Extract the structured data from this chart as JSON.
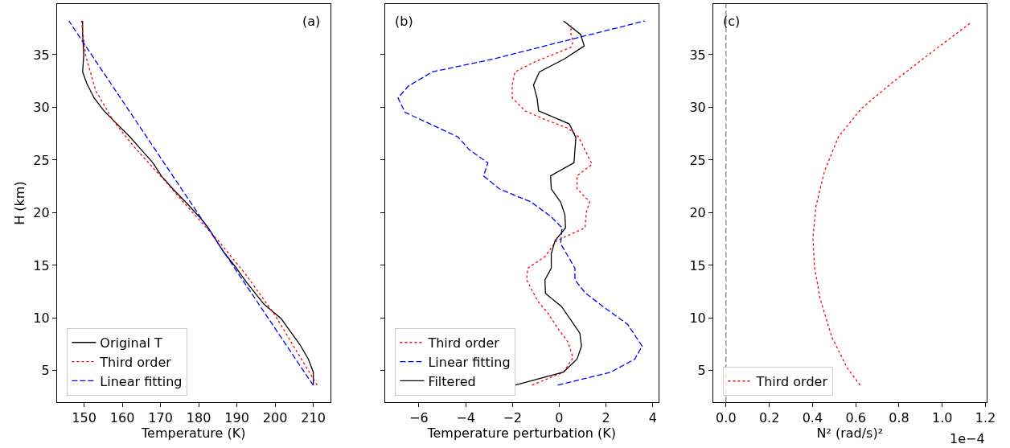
{
  "chart_data": [
    {
      "type": "line",
      "xlabel": "Temperature (K)",
      "ylabel": "H (km)",
      "annotations": [
        "(a)"
      ],
      "xlim": [
        142.9,
        214.4
      ],
      "xticks": [
        150,
        160,
        170,
        180,
        190,
        200,
        210
      ],
      "ylim": [
        2.0,
        39.8
      ],
      "yticks": [
        5,
        10,
        15,
        20,
        25,
        30,
        35
      ],
      "legend": "bottom left",
      "series": [
        {
          "name": "Original T",
          "color": "#000000",
          "line_style": "solid",
          "x": [
            210.0,
            210.0,
            208.7,
            206.5,
            204.6,
            201.6,
            197.1,
            192.3,
            189.6,
            186.6,
            182.5,
            180.7,
            176.9,
            173.2,
            170.2,
            168.0,
            165.0,
            162.0,
            158.6,
            155.2,
            152.6,
            150.7,
            149.6,
            149.9,
            149.6,
            149.6
          ],
          "values": [
            3.63,
            4.86,
            6.1,
            7.47,
            8.42,
            9.93,
            11.3,
            13.49,
            14.86,
            16.23,
            18.56,
            19.38,
            20.89,
            22.26,
            23.49,
            24.73,
            25.96,
            27.19,
            28.42,
            29.66,
            30.89,
            32.26,
            33.36,
            35.0,
            36.92,
            38.2
          ]
        },
        {
          "name": "Third order",
          "color": "#ff0000",
          "line_style": "dotted",
          "x": [
            211.0,
            204.6,
            200.1,
            192.6,
            185.2,
            177.7,
            170.2,
            162.7,
            157.5,
            153.0,
            150.4,
            149.3
          ],
          "values": [
            3.63,
            7.47,
            10.2,
            14.0,
            17.3,
            20.3,
            23.4,
            26.4,
            28.8,
            31.6,
            34.9,
            38.2
          ]
        },
        {
          "name": "Linear fitting",
          "color": "#0000ff",
          "line_style": "dashed",
          "x": [
            210.0,
            146.0
          ],
          "values": [
            3.6,
            38.2
          ]
        }
      ]
    },
    {
      "type": "line",
      "xlabel": "Temperature perturbation (K)",
      "annotations": [
        "(b)"
      ],
      "xlim": [
        -7.44,
        4.23
      ],
      "xticks": [
        {
          "value": -6,
          "label": "−6"
        },
        {
          "value": -4,
          "label": "−4"
        },
        {
          "value": -2,
          "label": "−2"
        },
        0,
        2,
        4
      ],
      "ylim": [
        2.0,
        39.8
      ],
      "yticks": [
        {
          "value": 5,
          "label": null
        },
        {
          "value": 10,
          "label": null
        },
        {
          "value": 15,
          "label": null
        },
        {
          "value": 20,
          "label": null
        },
        {
          "value": 25,
          "label": null
        },
        {
          "value": 30,
          "label": null
        },
        {
          "value": 35,
          "label": null
        }
      ],
      "tick_labels": "x",
      "legend": "bottom left",
      "series": [
        {
          "name": "Third order",
          "color": "#ff0000",
          "line_style": "dotted",
          "x": [
            -1.16,
            0.18,
            0.59,
            0.37,
            0.0,
            -0.49,
            -0.91,
            -1.4,
            -1.34,
            -0.61,
            -0.12,
            1.1,
            1.16,
            1.3,
            0.76,
            0.76,
            1.4,
            0.83,
            0.37,
            -0.61,
            -1.46,
            -2.01,
            -2.01,
            -1.89,
            -1.04,
            0.49,
            0.59,
            0.49,
            0.51
          ],
          "values": [
            3.63,
            4.86,
            6.23,
            7.74,
            8.84,
            10.48,
            11.58,
            13.63,
            14.73,
            15.82,
            17.33,
            18.56,
            20.07,
            21.03,
            22.26,
            23.49,
            24.59,
            27.19,
            28.01,
            28.84,
            29.66,
            30.89,
            32.12,
            33.36,
            34.32,
            35.68,
            36.23,
            37.05,
            37.79
          ]
        },
        {
          "name": "Linear fitting",
          "color": "#0000ff",
          "line_style": "dashed",
          "x": [
            -0.06,
            2.2,
            3.23,
            3.54,
            2.93,
            1.83,
            1.1,
            0.67,
            0.67,
            0.06,
            0.12,
            -0.37,
            -1.22,
            -1.83,
            -2.56,
            -3.23,
            -3.05,
            -3.84,
            -4.33,
            -6.59,
            -6.89,
            -6.46,
            -5.43,
            -2.8,
            -0.12,
            3.66
          ],
          "values": [
            3.63,
            4.86,
            6.1,
            7.33,
            9.38,
            11.16,
            12.4,
            13.63,
            14.73,
            17.05,
            18.56,
            19.66,
            21.03,
            21.58,
            22.26,
            23.49,
            24.73,
            25.96,
            27.19,
            29.52,
            30.89,
            31.99,
            33.36,
            34.59,
            36.1,
            38.2
          ]
        },
        {
          "name": "Filtered",
          "color": "#000000",
          "line_style": "solid",
          "x": [
            -1.89,
            0.18,
            0.76,
            0.95,
            0.88,
            0.1,
            -0.59,
            -0.61,
            -0.34,
            -0.34,
            -0.18,
            0.27,
            0.24,
            0.06,
            -0.34,
            -0.37,
            0.63,
            0.71,
            0.43,
            -0.88,
            -0.95,
            -1.1,
            -0.85,
            0.22,
            1.07,
            0.91,
            0.18
          ],
          "values": [
            3.63,
            4.86,
            6.1,
            7.33,
            8.56,
            11.08,
            12.34,
            13.63,
            14.73,
            16.1,
            17.33,
            18.56,
            19.8,
            21.0,
            22.26,
            23.49,
            24.73,
            27.14,
            28.42,
            29.66,
            30.89,
            32.12,
            33.36,
            34.59,
            35.82,
            36.92,
            38.2
          ]
        }
      ]
    },
    {
      "type": "line",
      "xlabel": "N² (rad/s)²",
      "annotations": [
        "(c)",
        "1e−4"
      ],
      "xlim": [
        -0.059,
        1.204
      ],
      "xticks": [
        {
          "value": 0,
          "label": "0.0"
        },
        0.2,
        0.4,
        0.6,
        0.8,
        {
          "value": 1,
          "label": "1.0"
        },
        1.2
      ],
      "ylim": [
        2.0,
        39.8
      ],
      "yticks": [
        5,
        10,
        15,
        20,
        25,
        30,
        35
      ],
      "legend": "bottom left",
      "ref_lines": [
        {
          "axis": "x",
          "value": 0,
          "color": "#808080",
          "line_style": "dashed"
        }
      ],
      "series": [
        {
          "name": "Third order",
          "color": "#ff0000",
          "line_style": "dotted",
          "x": [
            0.62,
            0.56,
            0.49,
            0.435,
            0.409,
            0.402,
            0.416,
            0.455,
            0.52,
            0.627,
            0.772,
            0.956,
            1.13
          ],
          "values": [
            3.63,
            5.27,
            8.15,
            11.85,
            14.86,
            17.6,
            20.6,
            23.9,
            27.2,
            29.9,
            32.4,
            35.3,
            38.0
          ]
        }
      ]
    }
  ]
}
